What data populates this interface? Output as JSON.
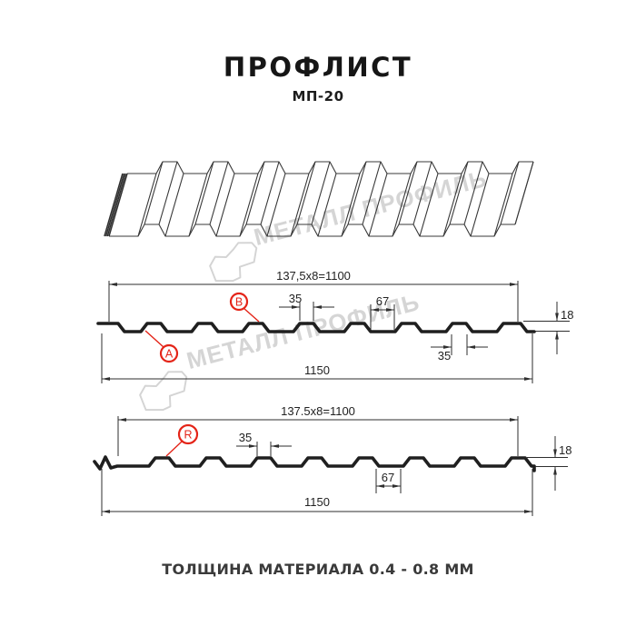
{
  "title": "ПРОФЛИСТ",
  "subtitle": "МП-20",
  "footer_note": "ТОЛЩИНА МАТЕРИАЛА 0.4 - 0.8 ММ",
  "watermark": {
    "brand": "МЕТАЛЛ ПРОФИЛЬ",
    "color": "#d5d5d5"
  },
  "colors": {
    "accent_red": "#e42418",
    "line_dark": "#1f1f1f",
    "watermark_gray": "#d5d5d5"
  },
  "section_front": {
    "scheme_label": "137,5x8=1100",
    "overall_label": "1150",
    "crest_label": "35",
    "valley_label": "67",
    "base_label": "35",
    "height_label": "18",
    "marker_a": "A",
    "marker_b": "B"
  },
  "section_back": {
    "scheme_label": "137.5x8=1100",
    "overall_label": "1150",
    "crest_label": "35",
    "valley_label": "67",
    "height_label": "18",
    "marker_r": "R"
  }
}
